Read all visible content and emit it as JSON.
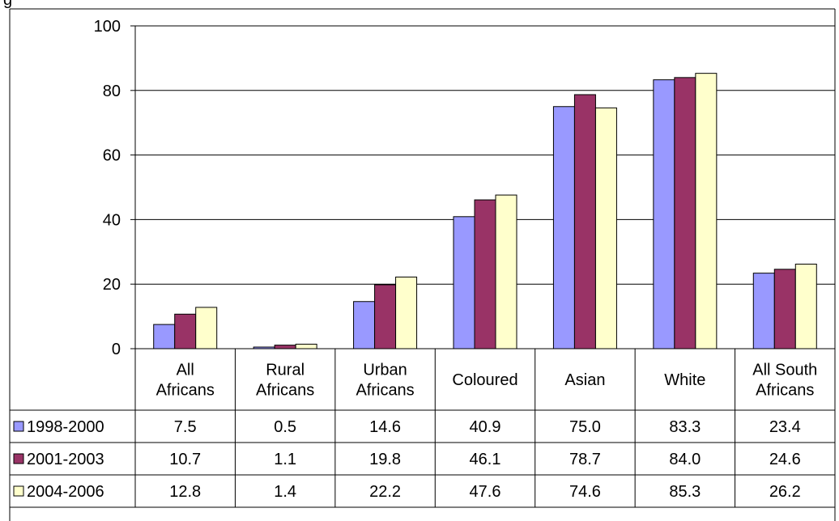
{
  "header_fragment": "g",
  "chart_data": {
    "type": "bar",
    "categories": [
      [
        "All",
        "Africans"
      ],
      [
        "Rural",
        "Africans"
      ],
      [
        "Urban",
        "Africans"
      ],
      [
        "Coloured"
      ],
      [
        "Asian"
      ],
      [
        "White"
      ],
      [
        "All South",
        "Africans"
      ]
    ],
    "series": [
      {
        "name": "1998-2000",
        "color": "#9999FF",
        "values": [
          7.5,
          0.5,
          14.6,
          40.9,
          75.0,
          83.3,
          23.4
        ]
      },
      {
        "name": "2001-2003",
        "color": "#993366",
        "values": [
          10.7,
          1.1,
          19.8,
          46.1,
          78.7,
          84.0,
          24.6
        ]
      },
      {
        "name": "2004-2006",
        "color": "#FFFFCC",
        "values": [
          12.8,
          1.4,
          22.2,
          47.6,
          74.6,
          85.3,
          26.2
        ]
      }
    ],
    "table_values": [
      [
        "7.5",
        "0.5",
        "14.6",
        "40.9",
        "75.0",
        "83.3",
        "23.4"
      ],
      [
        "10.7",
        "1.1",
        "19.8",
        "46.1",
        "78.7",
        "84.0",
        "24.6"
      ],
      [
        "12.8",
        "1.4",
        "22.2",
        "47.6",
        "74.6",
        "85.3",
        "26.2"
      ]
    ],
    "ylim": [
      0,
      100
    ],
    "yticks": [
      "0",
      "20",
      "40",
      "60",
      "80",
      "100"
    ],
    "grid": true,
    "legend": "data-table-left"
  }
}
